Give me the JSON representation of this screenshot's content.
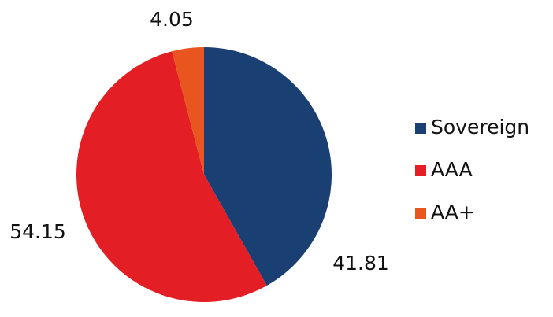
{
  "chart_data": {
    "type": "pie",
    "categories": [
      "Sovereign",
      "AAA",
      "AA+"
    ],
    "values": [
      41.81,
      54.15,
      4.05
    ],
    "colors": [
      "#1a3f73",
      "#e31e25",
      "#e8551f"
    ],
    "legend": "right"
  }
}
